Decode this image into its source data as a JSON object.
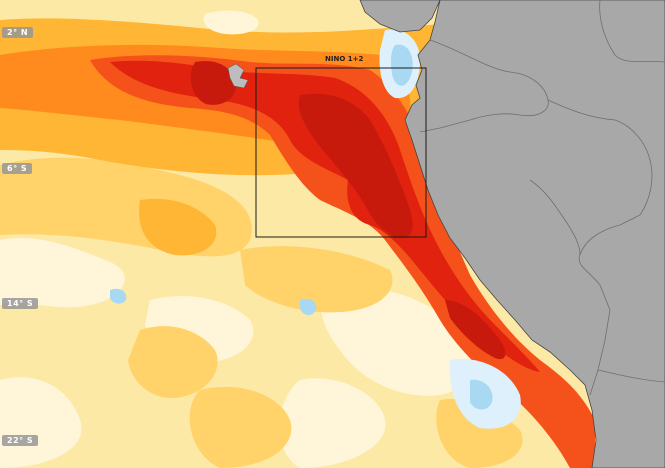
{
  "map": {
    "latitude_labels": [
      "2° N",
      "6° S",
      "14° S",
      "22° S"
    ],
    "region_label": "NINO 1+2",
    "colors": {
      "background": "#fde9a6",
      "land": "#a8a8a8",
      "border": "#6f6f6f",
      "coast": "#444444",
      "anomaly_light": "#fff6d9",
      "anomaly_pale": "#ffe8a0",
      "anomaly_yellow": "#ffd36a",
      "anomaly_gold": "#ffb634",
      "anomaly_orange": "#ff8a1e",
      "anomaly_red_orange": "#f5511a",
      "anomaly_red": "#e0220f",
      "anomaly_dark_red": "#c81a0c",
      "cool_light": "#ddf0fb",
      "cool_blue": "#a8d8f2",
      "region_box": "#1a1a1a"
    }
  }
}
